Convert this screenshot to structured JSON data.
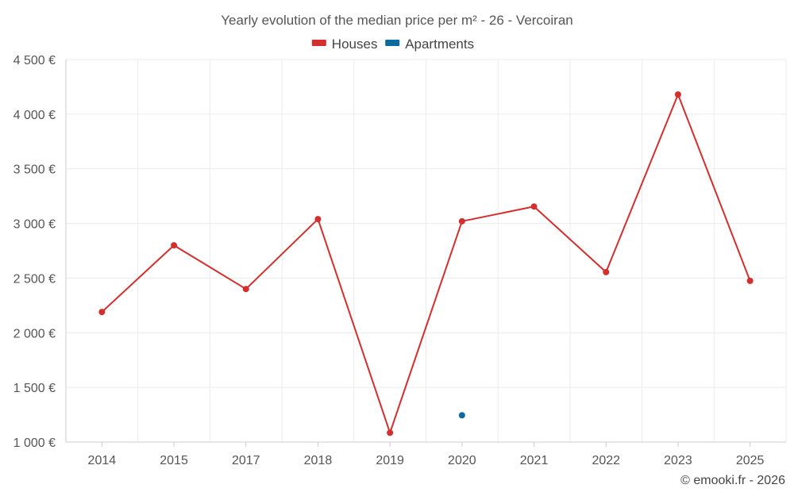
{
  "chart_data": {
    "type": "line",
    "title": "Yearly evolution of the median price per m² - 26 - Vercoiran",
    "categories": [
      "2014",
      "2015",
      "2017",
      "2018",
      "2019",
      "2020",
      "2021",
      "2022",
      "2023",
      "2025"
    ],
    "series": [
      {
        "name": "Houses",
        "color": "#d32f2f",
        "values": [
          2190,
          2800,
          2400,
          3040,
          1085,
          3020,
          3155,
          2555,
          4180,
          2475
        ]
      },
      {
        "name": "Apartments",
        "color": "#0b6a9e",
        "values": [
          null,
          null,
          null,
          null,
          null,
          1245,
          null,
          null,
          null,
          null
        ]
      }
    ],
    "ylim": [
      1000,
      4500
    ],
    "yticks": [
      1000,
      1500,
      2000,
      2500,
      3000,
      3500,
      4000,
      4500
    ],
    "ytick_labels": [
      "1 000 €",
      "1 500 €",
      "2 000 €",
      "2 500 €",
      "3 000 €",
      "3 500 €",
      "4 000 €",
      "4 500 €"
    ],
    "xlabel": "",
    "ylabel": "",
    "legend_position": "top-center",
    "grid": true,
    "credit": "© emooki.fr - 2026"
  }
}
